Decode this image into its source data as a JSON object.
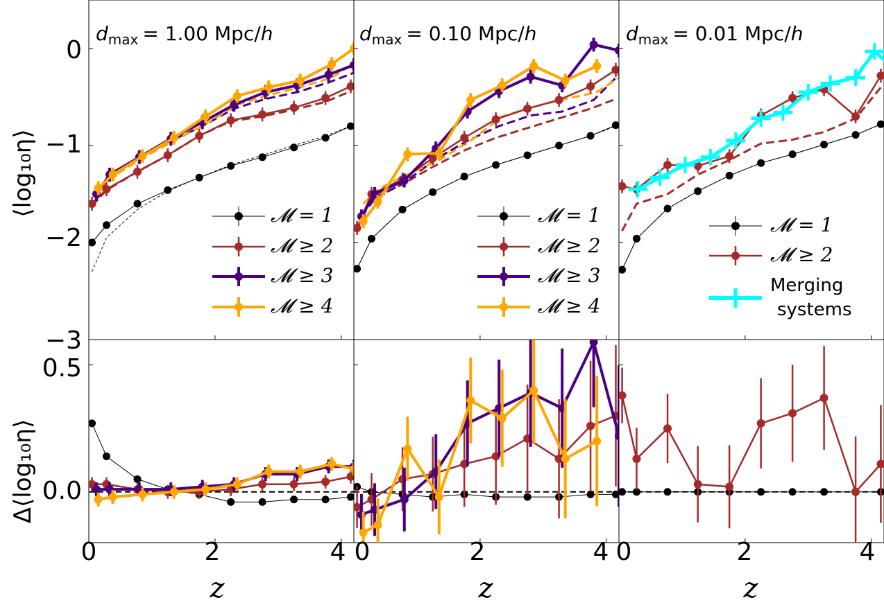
{
  "chart_data": [
    {
      "type": "line",
      "panel": "top-left",
      "title_text": "= 1.00 Mpc/",
      "title_var": "d",
      "title_sub": "max",
      "title_h": "h",
      "xlim": [
        0,
        4.2
      ],
      "ylim": [
        -3,
        0.5
      ],
      "ylabel": "⟨log₁₀η⟩",
      "yticks": [
        "0",
        "−1",
        "−2",
        "−3"
      ],
      "legend_position": "lower-right",
      "legend_entries": [
        "𝓜 = 1",
        "𝓜 ≥ 2",
        "𝓜 ≥ 3",
        "𝓜 ≥ 4"
      ],
      "series": [
        {
          "name": "𝓜 = 1",
          "color": "#000000",
          "x": [
            0.05,
            0.28,
            0.77,
            1.25,
            1.75,
            2.25,
            2.75,
            3.25,
            3.75,
            4.15
          ],
          "y": [
            -2.0,
            -1.82,
            -1.6,
            -1.46,
            -1.33,
            -1.21,
            -1.12,
            -1.02,
            -0.92,
            -0.8
          ]
        },
        {
          "name": "𝓜 ≥ 2",
          "color": "#a52a2a",
          "x": [
            0.05,
            0.28,
            0.77,
            1.25,
            1.75,
            2.25,
            2.75,
            3.25,
            3.75,
            4.15
          ],
          "y": [
            -1.6,
            -1.45,
            -1.27,
            -1.1,
            -0.9,
            -0.74,
            -0.68,
            -0.61,
            -0.51,
            -0.39
          ]
        },
        {
          "name": "𝓜 ≥ 3",
          "color": "#4b0082",
          "x": [
            0.12,
            0.33,
            0.8,
            1.3,
            1.8,
            2.3,
            2.8,
            3.3,
            3.8,
            4.2
          ],
          "y": [
            -1.5,
            -1.3,
            -1.12,
            -0.93,
            -0.76,
            -0.58,
            -0.45,
            -0.38,
            -0.27,
            -0.17
          ]
        },
        {
          "name": "𝓜 ≥ 4",
          "color": "#ffa500",
          "x": [
            0.15,
            0.38,
            0.85,
            1.35,
            1.85,
            2.35,
            2.85,
            3.35,
            3.85,
            4.2
          ],
          "y": [
            -1.44,
            -1.3,
            -1.11,
            -0.92,
            -0.7,
            -0.49,
            -0.4,
            -0.33,
            -0.16,
            0.0
          ]
        }
      ],
      "dashed_series": [
        {
          "color": "#000000",
          "x": [
            0.05,
            0.28,
            0.77,
            1.25,
            1.75,
            2.25,
            2.75,
            3.25,
            3.75,
            4.15
          ],
          "y": [
            -2.3,
            -1.95,
            -1.66,
            -1.47,
            -1.33,
            -1.2,
            -1.1,
            -1.0,
            -0.9,
            -0.8
          ]
        },
        {
          "color": "#a52a2a",
          "x": [
            0.05,
            0.28,
            0.77,
            1.25,
            1.75,
            2.25,
            2.75,
            3.25,
            3.75,
            4.15
          ],
          "y": [
            -1.62,
            -1.46,
            -1.27,
            -1.1,
            -0.9,
            -0.75,
            -0.7,
            -0.63,
            -0.55,
            -0.44
          ]
        },
        {
          "color": "#4b0082",
          "x": [
            0.12,
            0.33,
            0.8,
            1.3,
            1.8,
            2.3,
            2.8,
            3.3,
            3.8,
            4.2
          ],
          "y": [
            -1.52,
            -1.32,
            -1.13,
            -0.95,
            -0.8,
            -0.62,
            -0.52,
            -0.45,
            -0.35,
            -0.25
          ]
        },
        {
          "color": "#ffa500",
          "x": [
            0.15,
            0.38,
            0.85,
            1.35,
            1.85,
            2.35,
            2.85,
            3.35,
            3.85,
            4.2
          ],
          "y": [
            -1.45,
            -1.32,
            -1.13,
            -0.95,
            -0.78,
            -0.58,
            -0.48,
            -0.4,
            -0.3,
            -0.15
          ]
        }
      ]
    },
    {
      "type": "line",
      "panel": "top-middle",
      "title_text": "= 0.10 Mpc/",
      "title_var": "d",
      "title_sub": "max",
      "title_h": "h",
      "xlim": [
        0,
        4.2
      ],
      "ylim": [
        -3,
        0.5
      ],
      "legend_position": "lower-right",
      "legend_entries": [
        "𝓜 = 1",
        "𝓜 ≥ 2",
        "𝓜 ≥ 3",
        "𝓜 ≥ 4"
      ],
      "series": [
        {
          "name": "𝓜 = 1",
          "color": "#000000",
          "x": [
            0.05,
            0.28,
            0.77,
            1.25,
            1.75,
            2.25,
            2.75,
            3.25,
            3.75,
            4.15
          ],
          "y": [
            -2.27,
            -1.96,
            -1.66,
            -1.48,
            -1.32,
            -1.2,
            -1.1,
            -1.0,
            -0.9,
            -0.79
          ]
        },
        {
          "name": "𝓜 ≥ 2",
          "color": "#a52a2a",
          "x": [
            0.05,
            0.28,
            0.77,
            1.25,
            1.75,
            2.25,
            2.75,
            3.25,
            3.75,
            4.15
          ],
          "y": [
            -1.85,
            -1.5,
            -1.35,
            -1.13,
            -0.92,
            -0.73,
            -0.62,
            -0.53,
            -0.39,
            -0.22
          ]
        },
        {
          "name": "𝓜 ≥ 3",
          "color": "#4b0082",
          "x": [
            0.12,
            0.33,
            0.8,
            1.3,
            1.8,
            2.3,
            2.8,
            3.3,
            3.8,
            4.2
          ],
          "y": [
            -1.73,
            -1.5,
            -1.36,
            -1.03,
            -0.65,
            -0.44,
            -0.29,
            -0.38,
            0.04,
            -0.02
          ]
        },
        {
          "name": "𝓜 ≥ 4",
          "color": "#ffa500",
          "x": [
            0.15,
            0.38,
            0.85,
            1.35,
            1.85,
            2.35,
            2.85,
            3.35,
            3.85,
            4.2
          ],
          "y": [
            -1.78,
            -1.58,
            -1.09,
            -1.08,
            -0.53,
            -0.38,
            -0.18,
            -0.33,
            -0.18,
            null
          ]
        }
      ],
      "dashed_series": [
        {
          "color": "#000000",
          "x": [
            0.05,
            0.28,
            0.77,
            1.25,
            1.75,
            2.25,
            2.75,
            3.25,
            3.75,
            4.15
          ],
          "y": [
            -2.27,
            -1.96,
            -1.66,
            -1.48,
            -1.32,
            -1.2,
            -1.1,
            -1.0,
            -0.9,
            -0.8
          ]
        },
        {
          "color": "#a52a2a",
          "x": [
            0.05,
            0.28,
            0.77,
            1.25,
            1.75,
            2.25,
            2.75,
            3.25,
            3.75,
            4.15
          ],
          "y": [
            -1.86,
            -1.55,
            -1.4,
            -1.22,
            -1.05,
            -0.92,
            -0.82,
            -0.72,
            -0.62,
            -0.52
          ]
        },
        {
          "color": "#4b0082",
          "x": [
            0.12,
            0.33,
            0.8,
            1.3,
            1.8,
            2.3,
            2.8,
            3.3,
            3.8,
            4.2
          ],
          "y": [
            -1.73,
            -1.55,
            -1.38,
            -1.14,
            -0.95,
            -0.8,
            -0.69,
            -0.65,
            -0.53,
            -0.27
          ]
        },
        {
          "color": "#ffa500",
          "x": [
            0.15,
            0.38,
            0.85,
            1.35,
            1.85,
            2.35,
            2.85,
            3.35,
            3.85,
            4.2
          ],
          "y": [
            -1.6,
            -1.45,
            -1.3,
            -1.15,
            -0.95,
            -0.7,
            -0.6,
            -0.52,
            -0.45,
            -0.3
          ]
        }
      ]
    },
    {
      "type": "line",
      "panel": "top-right",
      "title_text": "= 0.01 Mpc/",
      "title_var": "d",
      "title_sub": "max",
      "title_h": "h",
      "xlim": [
        0,
        4.2
      ],
      "ylim": [
        -3,
        0.5
      ],
      "legend_position": "lower-right",
      "legend_entries": [
        "𝓜 = 1",
        "𝓜 ≥ 2",
        "Merging",
        "systems"
      ],
      "series": [
        {
          "name": "𝓜 = 1",
          "color": "#000000",
          "x": [
            0.05,
            0.28,
            0.77,
            1.25,
            1.75,
            2.25,
            2.75,
            3.25,
            3.75,
            4.15
          ],
          "y": [
            -2.28,
            -1.96,
            -1.65,
            -1.47,
            -1.31,
            -1.18,
            -1.09,
            -0.99,
            -0.89,
            -0.78
          ]
        },
        {
          "name": "𝓜 ≥ 2",
          "color": "#a52a2a",
          "x": [
            0.05,
            0.28,
            0.77,
            1.25,
            1.75,
            2.25,
            2.75,
            3.25,
            3.75,
            4.15
          ],
          "y": [
            -1.42,
            -1.45,
            -1.2,
            -1.21,
            -1.11,
            -0.69,
            -0.51,
            -0.42,
            -0.7,
            -0.28
          ]
        },
        {
          "name": "Merging systems",
          "color": "#00ffff",
          "x": [
            0.3,
            0.65,
            1.05,
            1.45,
            1.85,
            2.25,
            2.6,
            3.0,
            3.35,
            3.75,
            4.05,
            4.4
          ],
          "y": [
            -1.45,
            -1.33,
            -1.2,
            -1.12,
            -0.95,
            -0.72,
            -0.66,
            -0.45,
            -0.36,
            -0.3,
            -0.03,
            -0.23
          ]
        }
      ],
      "dashed_series": [
        {
          "color": "#000000",
          "x": [
            0.05,
            0.28,
            0.77,
            1.25,
            1.75,
            2.25,
            2.75,
            3.25,
            3.75,
            4.15
          ],
          "y": [
            -2.28,
            -1.96,
            -1.65,
            -1.47,
            -1.31,
            -1.18,
            -1.09,
            -0.99,
            -0.89,
            -0.78
          ]
        },
        {
          "color": "#a52a2a",
          "x": [
            0.05,
            0.28,
            0.77,
            1.25,
            1.75,
            2.25,
            2.75,
            3.25,
            3.75,
            4.15
          ],
          "y": [
            -1.88,
            -1.6,
            -1.5,
            -1.3,
            -1.15,
            -0.98,
            -0.94,
            -0.86,
            -0.72,
            -0.4
          ]
        }
      ]
    },
    {
      "type": "line",
      "panel": "bottom-left",
      "xlim": [
        0,
        4.2
      ],
      "ylim": [
        -0.2,
        0.6
      ],
      "xlabel": "z",
      "ylabel": "Δ⟨log₁₀η⟩",
      "xticks": [
        "0",
        "2",
        "4"
      ],
      "yticks": [
        "0.5",
        "0.0"
      ],
      "series": [
        {
          "name": "𝓜 = 1",
          "color": "#000000",
          "x": [
            0.05,
            0.28,
            0.77,
            1.25,
            1.75,
            2.25,
            2.75,
            3.25,
            3.75,
            4.15
          ],
          "y": [
            0.27,
            0.14,
            0.05,
            0.01,
            -0.01,
            -0.04,
            -0.04,
            -0.03,
            -0.03,
            -0.02
          ]
        },
        {
          "name": "𝓜 ≥ 2",
          "color": "#a52a2a",
          "x": [
            0.05,
            0.28,
            0.77,
            1.25,
            1.75,
            2.25,
            2.75,
            3.25,
            3.75,
            4.15
          ],
          "y": [
            0.03,
            0.03,
            0.01,
            0.0,
            0.0,
            0.01,
            0.03,
            0.03,
            0.04,
            0.06
          ]
        },
        {
          "name": "𝓜 ≥ 3",
          "color": "#4b0082",
          "x": [
            0.12,
            0.33,
            0.8,
            1.3,
            1.8,
            2.3,
            2.8,
            3.3,
            3.8,
            4.2
          ],
          "y": [
            0.01,
            0.01,
            0.01,
            0.01,
            0.02,
            0.03,
            0.07,
            0.07,
            0.1,
            0.1
          ]
        },
        {
          "name": "𝓜 ≥ 4",
          "color": "#ffa500",
          "x": [
            0.15,
            0.38,
            0.85,
            1.35,
            1.85,
            2.35,
            2.85,
            3.35,
            3.85,
            4.2
          ],
          "y": [
            -0.03,
            -0.02,
            -0.01,
            0.0,
            0.01,
            0.03,
            0.08,
            0.08,
            0.11,
            0.09
          ]
        }
      ]
    },
    {
      "type": "line",
      "panel": "bottom-middle",
      "xlim": [
        0,
        4.2
      ],
      "ylim": [
        -0.2,
        0.6
      ],
      "xlabel": "z",
      "xticks": [
        "0",
        "2",
        "4"
      ],
      "series": [
        {
          "name": "𝓜 = 1",
          "color": "#000000",
          "x": [
            0.05,
            0.28,
            0.77,
            1.25,
            1.75,
            2.25,
            2.75,
            3.25,
            3.75,
            4.15
          ],
          "y": [
            0.02,
            0.0,
            -0.01,
            -0.02,
            -0.01,
            -0.02,
            -0.02,
            -0.02,
            -0.01,
            -0.01
          ]
        },
        {
          "name": "𝓜 ≥ 2",
          "color": "#a52a2a",
          "x": [
            0.05,
            0.28,
            0.77,
            1.25,
            1.75,
            2.25,
            2.75,
            3.25,
            3.75,
            4.15
          ],
          "y": [
            -0.06,
            -0.03,
            0.05,
            0.07,
            0.11,
            0.14,
            0.21,
            0.13,
            0.26,
            0.3
          ]
        },
        {
          "name": "𝓜 ≥ 3",
          "color": "#4b0082",
          "x": [
            0.12,
            0.33,
            0.8,
            1.3,
            1.8,
            2.3,
            2.8,
            3.3,
            3.8,
            4.2
          ],
          "y": [
            -0.09,
            -0.07,
            -0.03,
            0.08,
            0.27,
            0.33,
            0.39,
            0.33,
            0.59,
            0.22
          ]
        },
        {
          "name": "𝓜 ≥ 4",
          "color": "#ffa500",
          "x": [
            0.15,
            0.38,
            0.85,
            1.35,
            1.85,
            2.35,
            2.85,
            3.35,
            3.85,
            4.2
          ],
          "y": [
            -0.16,
            -0.13,
            0.17,
            -0.02,
            0.36,
            0.29,
            0.4,
            0.13,
            0.2,
            null
          ]
        }
      ]
    },
    {
      "type": "line",
      "panel": "bottom-right",
      "xlim": [
        0,
        4.2
      ],
      "ylim": [
        -0.2,
        0.6
      ],
      "xlabel": "z",
      "xticks": [
        "0",
        "2",
        "4"
      ],
      "series": [
        {
          "name": "𝓜 = 1",
          "color": "#000000",
          "x": [
            0.05,
            0.28,
            0.77,
            1.25,
            1.75,
            2.25,
            2.75,
            3.25,
            3.75,
            4.15
          ],
          "y": [
            0.0,
            0.0,
            0.0,
            0.0,
            0.0,
            0.0,
            0.0,
            0.0,
            0.0,
            0.0
          ]
        },
        {
          "name": "𝓜 ≥ 2",
          "color": "#a52a2a",
          "x": [
            0.05,
            0.28,
            0.77,
            1.25,
            1.75,
            2.25,
            2.75,
            3.25,
            3.75,
            4.15
          ],
          "y": [
            0.38,
            0.13,
            0.25,
            0.03,
            0.02,
            0.27,
            0.31,
            0.37,
            0.0,
            0.11
          ]
        }
      ]
    }
  ],
  "icons": {
    "legend_marker": "filled-circle-with-errorbar"
  },
  "colors": {
    "m1": "#000000",
    "m2": "#a52a2a",
    "m3": "#4b0082",
    "m4": "#ffa500",
    "merging": "#00ffff"
  }
}
